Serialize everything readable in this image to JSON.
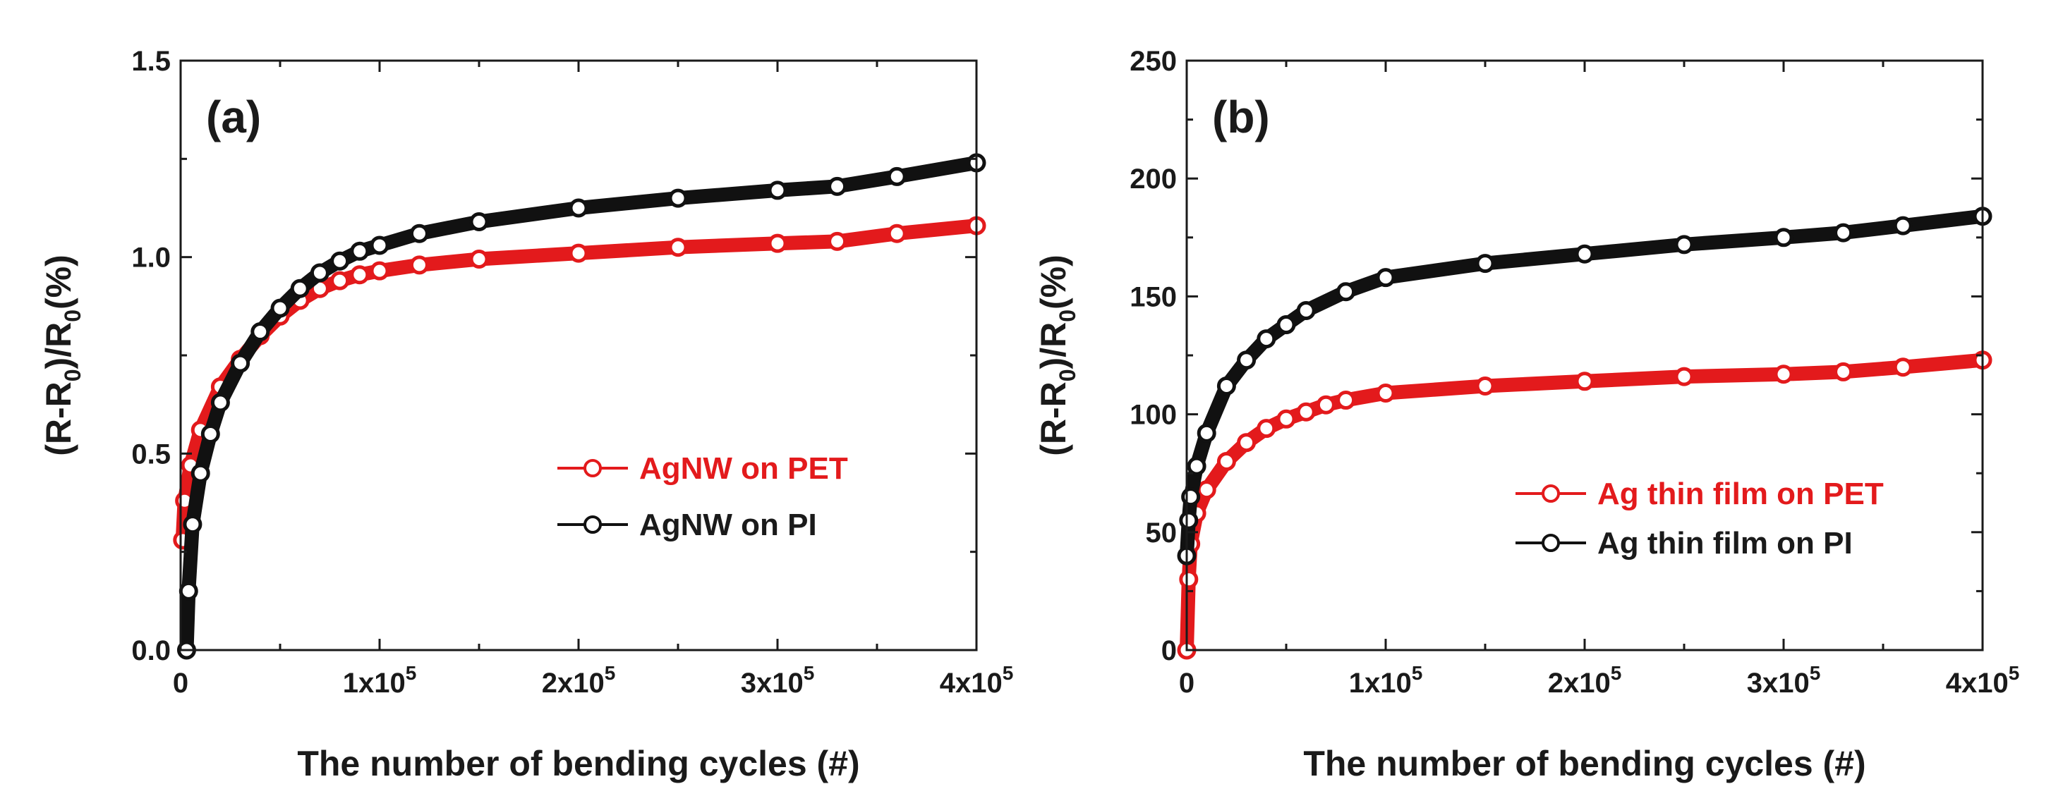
{
  "chart_data": [
    {
      "type": "line",
      "panel_label": "(a)",
      "xlabel": "The number of bending cycles (#)",
      "ylabel_parts": [
        "(R-R",
        "0",
        ")/R",
        "0",
        "(%)"
      ],
      "xlim": [
        0,
        400000
      ],
      "ylim": [
        0,
        1.5
      ],
      "y_ticks": [
        "0.0",
        "0.5",
        "1.0",
        "1.5"
      ],
      "y_tick_values": [
        0,
        0.5,
        1.0,
        1.5
      ],
      "x_ticks": [
        {
          "value": 0,
          "base": "0",
          "exp": ""
        },
        {
          "value": 100000,
          "base": "1x10",
          "exp": "5"
        },
        {
          "value": 200000,
          "base": "2x10",
          "exp": "5"
        },
        {
          "value": 300000,
          "base": "3x10",
          "exp": "5"
        },
        {
          "value": 400000,
          "base": "4x10",
          "exp": "5"
        }
      ],
      "legend_position": "center-right",
      "series": [
        {
          "name": "AgNW on PET",
          "color": "#e31a1c",
          "x": [
            1000,
            2000,
            5000,
            10000,
            20000,
            30000,
            40000,
            50000,
            60000,
            70000,
            80000,
            90000,
            100000,
            120000,
            150000,
            200000,
            250000,
            300000,
            330000,
            360000,
            400000
          ],
          "y": [
            0.28,
            0.38,
            0.47,
            0.56,
            0.67,
            0.74,
            0.8,
            0.85,
            0.89,
            0.92,
            0.94,
            0.955,
            0.965,
            0.98,
            0.995,
            1.01,
            1.025,
            1.035,
            1.04,
            1.06,
            1.08
          ]
        },
        {
          "name": "AgNW on PI",
          "color": "#111111",
          "x": [
            3000,
            4000,
            6000,
            10000,
            15000,
            20000,
            30000,
            40000,
            50000,
            60000,
            70000,
            80000,
            90000,
            100000,
            120000,
            150000,
            200000,
            250000,
            300000,
            330000,
            360000,
            400000
          ],
          "y": [
            0.0,
            0.15,
            0.32,
            0.45,
            0.55,
            0.63,
            0.73,
            0.81,
            0.87,
            0.92,
            0.96,
            0.99,
            1.015,
            1.03,
            1.06,
            1.09,
            1.125,
            1.15,
            1.17,
            1.18,
            1.205,
            1.24
          ]
        }
      ]
    },
    {
      "type": "line",
      "panel_label": "(b)",
      "xlabel": "The number of bending cycles (#)",
      "ylabel_parts": [
        "(R-R",
        "0",
        ")/R",
        "0",
        "(%)"
      ],
      "xlim": [
        0,
        400000
      ],
      "ylim": [
        0,
        250
      ],
      "y_ticks": [
        "0",
        "50",
        "100",
        "150",
        "200",
        "250"
      ],
      "y_tick_values": [
        0,
        50,
        100,
        150,
        200,
        250
      ],
      "x_ticks": [
        {
          "value": 0,
          "base": "0",
          "exp": ""
        },
        {
          "value": 100000,
          "base": "1x10",
          "exp": "5"
        },
        {
          "value": 200000,
          "base": "2x10",
          "exp": "5"
        },
        {
          "value": 300000,
          "base": "3x10",
          "exp": "5"
        },
        {
          "value": 400000,
          "base": "4x10",
          "exp": "5"
        }
      ],
      "legend_position": "lower-right",
      "series": [
        {
          "name": "Ag thin film on PET",
          "color": "#e31a1c",
          "x": [
            0,
            1000,
            2000,
            5000,
            10000,
            20000,
            30000,
            40000,
            50000,
            60000,
            70000,
            80000,
            100000,
            150000,
            200000,
            250000,
            300000,
            330000,
            360000,
            400000
          ],
          "y": [
            0,
            30,
            45,
            58,
            68,
            80,
            88,
            94,
            98,
            101,
            104,
            106,
            109,
            112,
            114,
            116,
            117,
            118,
            120,
            123
          ]
        },
        {
          "name": "Ag thin film on PI",
          "color": "#111111",
          "x": [
            0,
            1000,
            2000,
            5000,
            10000,
            20000,
            30000,
            40000,
            50000,
            60000,
            80000,
            100000,
            150000,
            200000,
            250000,
            300000,
            330000,
            360000,
            400000
          ],
          "y": [
            40,
            55,
            65,
            78,
            92,
            112,
            123,
            132,
            138,
            144,
            152,
            158,
            164,
            168,
            172,
            175,
            177,
            180,
            184
          ]
        }
      ]
    }
  ]
}
